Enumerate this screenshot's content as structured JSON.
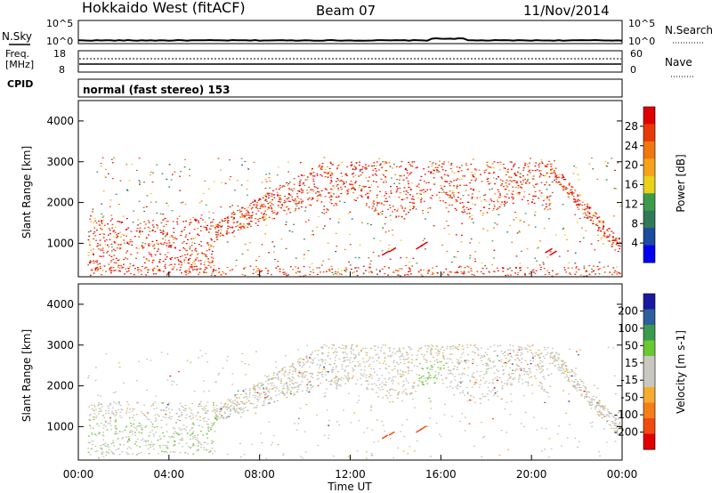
{
  "header": {
    "station": "Hokkaido West (fitACF)",
    "beam": "Beam 07",
    "date": "11/Nov/2014"
  },
  "noise_panel": {
    "left_label": "N.Sky",
    "right_label": "N.Search",
    "left_ticks": [
      "10^5",
      "10^0"
    ],
    "right_ticks": [
      "10^5",
      "10^0"
    ]
  },
  "freq_panel": {
    "left_label_1": "Freq.",
    "left_label_2": "[MHz]",
    "left_ticks": [
      "18",
      "8"
    ],
    "right_label": "Nave",
    "right_ticks": [
      "60",
      "0"
    ]
  },
  "cpid_panel": {
    "label": "CPID",
    "mode": "normal (fast stereo) 153"
  },
  "axes": {
    "ylabel": "Slant Range [km]",
    "xlabel": "Time UT",
    "x_ticks": [
      "00:00",
      "04:00",
      "08:00",
      "12:00",
      "16:00",
      "20:00",
      "00:00"
    ],
    "y_ticks": [
      "1000",
      "2000",
      "3000",
      "4000"
    ]
  },
  "colors": {
    "power_scale": [
      "#0000ee",
      "#1e4aa0",
      "#2f7a58",
      "#3c9a4a",
      "#e8d21a",
      "#f5a21a",
      "#f07810",
      "#e83a08",
      "#e00000"
    ],
    "velocity_scale": [
      "#e00000",
      "#f04a10",
      "#f57e18",
      "#f5ac30",
      "#c8c8c0",
      "#c8c8c0",
      "#6ac832",
      "#3a9a50",
      "#2c5f9e",
      "#1a1a9e"
    ],
    "ground_scatter": "#c0c0b8"
  },
  "chart_data": [
    {
      "type": "heatmap",
      "panel": "power",
      "title": "",
      "xlabel": "Time UT",
      "ylabel": "Slant Range [km]",
      "xlim_hours": [
        0,
        24
      ],
      "ylim": [
        180,
        4500
      ],
      "colorbar": {
        "label": "Power [dB]",
        "ticks": [
          "4",
          "8",
          "12",
          "16",
          "20",
          "24",
          "28"
        ],
        "range": [
          0,
          30
        ]
      },
      "features": [
        {
          "name": "near-range band",
          "start_h": 0.5,
          "end_h": 24,
          "range_km": [
            180,
            400
          ],
          "power_db": 28
        },
        {
          "name": "low-range layered echoes",
          "start_h": 0.5,
          "end_h": 7.5,
          "range_km": [
            400,
            1600
          ],
          "power_db": 28
        },
        {
          "name": "rising echo ramp",
          "start_h": 6.0,
          "end_h": 10.8,
          "range_from_km": [
            1400,
            2500
          ],
          "power_db": 28
        },
        {
          "name": "3000 km layer",
          "start_h": 10.8,
          "end_h": 20.8,
          "range_km": [
            1800,
            2900
          ],
          "power_db": 28
        },
        {
          "name": "evening descent",
          "start_h": 20.8,
          "end_h": 24,
          "range_from_km": [
            2800,
            600
          ],
          "power_db": 28
        },
        {
          "name": "isolated patches",
          "times_h": [
            13.5,
            14.9,
            20.6
          ],
          "range_km": [
            600,
            1000
          ],
          "power_db": 28
        }
      ]
    },
    {
      "type": "heatmap",
      "panel": "velocity",
      "title": "",
      "xlabel": "Time UT",
      "ylabel": "Slant Range [km]",
      "xlim_hours": [
        0,
        24
      ],
      "ylim": [
        180,
        4500
      ],
      "colorbar": {
        "label": "Velocity [m s-1]",
        "ticks": [
          "200",
          "100",
          "50",
          "15",
          "-15",
          "-50",
          "-100",
          "-200"
        ],
        "range": [
          -250,
          250
        ]
      },
      "features": [
        {
          "name": "ground scatter",
          "start_h": 0.5,
          "end_h": 21.5,
          "velocity_ms": 0
        },
        {
          "name": "green positive region",
          "start_h": 15.0,
          "end_h": 16.2,
          "range_km": [
            1600,
            2600
          ],
          "velocity_ms": 40
        },
        {
          "name": "orange negative patches",
          "start_h": 12.0,
          "end_h": 16.0,
          "range_km": [
            600,
            2600
          ],
          "velocity_ms": -60
        },
        {
          "name": "green scattered echoes",
          "start_h": 0.5,
          "end_h": 7.0,
          "range_km": [
            300,
            1200
          ],
          "velocity_ms": 40
        }
      ]
    }
  ]
}
